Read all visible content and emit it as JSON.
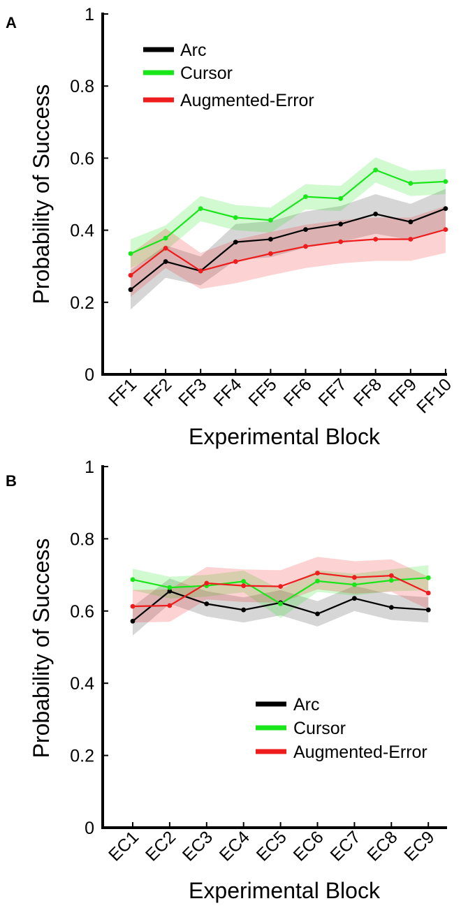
{
  "colors": {
    "Arc": "#000000",
    "Cursor": "#19e619",
    "Augmented-Error": "#ee1c1c"
  },
  "chart_data": [
    {
      "panel_label": "A",
      "type": "line",
      "title": "",
      "xlabel": "Experimental Block",
      "ylabel": "Probability of Success",
      "categories": [
        "FF1",
        "FF2",
        "FF3",
        "FF4",
        "FF5",
        "FF6",
        "FF7",
        "FF8",
        "FF9",
        "FF10"
      ],
      "ylim": [
        0,
        1
      ],
      "yticks": [
        0,
        0.2,
        0.4,
        0.6,
        0.8,
        1
      ],
      "ytick_labels": [
        "0",
        "0.2",
        "0.4",
        "0.6",
        "0.8",
        "1"
      ],
      "legend_position": "top-left",
      "series": [
        {
          "name": "Arc",
          "values": [
            0.235,
            0.313,
            0.287,
            0.367,
            0.375,
            0.402,
            0.417,
            0.445,
            0.423,
            0.46
          ],
          "band": [
            0.055,
            0.045,
            0.04,
            0.05,
            0.05,
            0.05,
            0.05,
            0.055,
            0.05,
            0.055
          ]
        },
        {
          "name": "Cursor",
          "values": [
            0.335,
            0.378,
            0.46,
            0.435,
            0.428,
            0.493,
            0.488,
            0.567,
            0.53,
            0.535
          ],
          "band": [
            0.04,
            0.035,
            0.035,
            0.035,
            0.035,
            0.035,
            0.035,
            0.035,
            0.035,
            0.035
          ]
        },
        {
          "name": "Augmented-Error",
          "values": [
            0.275,
            0.35,
            0.287,
            0.313,
            0.335,
            0.355,
            0.368,
            0.375,
            0.375,
            0.402
          ],
          "band": [
            0.06,
            0.055,
            0.05,
            0.06,
            0.06,
            0.06,
            0.06,
            0.06,
            0.06,
            0.065
          ]
        }
      ]
    },
    {
      "panel_label": "B",
      "type": "line",
      "title": "",
      "xlabel": "Experimental Block",
      "ylabel": "Probability of Success",
      "categories": [
        "EC1",
        "EC2",
        "EC3",
        "EC4",
        "EC5",
        "EC6",
        "EC7",
        "EC8",
        "EC9"
      ],
      "ylim": [
        0,
        1
      ],
      "yticks": [
        0,
        0.2,
        0.4,
        0.6,
        0.8,
        1
      ],
      "ytick_labels": [
        "0",
        "0.2",
        "0.4",
        "0.6",
        "0.8",
        "1"
      ],
      "legend_position": "bottom-right",
      "series": [
        {
          "name": "Arc",
          "values": [
            0.572,
            0.655,
            0.62,
            0.603,
            0.623,
            0.592,
            0.635,
            0.61,
            0.603
          ],
          "band": [
            0.04,
            0.035,
            0.035,
            0.035,
            0.035,
            0.035,
            0.035,
            0.035,
            0.035
          ]
        },
        {
          "name": "Cursor",
          "values": [
            0.687,
            0.665,
            0.67,
            0.682,
            0.62,
            0.683,
            0.673,
            0.685,
            0.692
          ],
          "band": [
            0.03,
            0.03,
            0.03,
            0.03,
            0.04,
            0.03,
            0.03,
            0.03,
            0.035
          ]
        },
        {
          "name": "Augmented-Error",
          "values": [
            0.613,
            0.615,
            0.677,
            0.67,
            0.668,
            0.705,
            0.693,
            0.698,
            0.65
          ],
          "band": [
            0.045,
            0.045,
            0.045,
            0.045,
            0.045,
            0.045,
            0.045,
            0.045,
            0.045
          ]
        }
      ]
    }
  ]
}
